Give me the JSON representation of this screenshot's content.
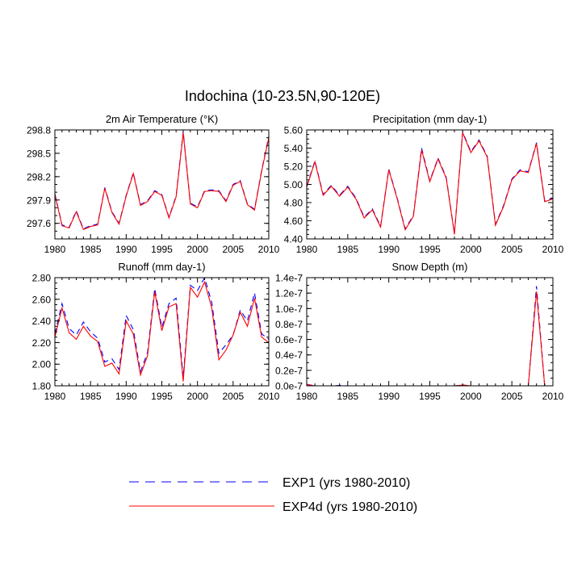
{
  "figure_title": "Indochina (10-23.5N,90-120E)",
  "legend": {
    "entries": [
      {
        "label": "EXP1 (yrs 1980-2010)",
        "color": "#0000ff",
        "dash": "dashed"
      },
      {
        "label": "EXP4d (yrs 1980-2010)",
        "color": "#ff0000",
        "dash": "solid"
      }
    ]
  },
  "colors": {
    "exp1": "#0000ff",
    "exp4d": "#ff0000"
  },
  "chart_data": [
    {
      "type": "line",
      "title": "2m Air Temperature",
      "units": "(°K)",
      "x": [
        1980,
        1981,
        1982,
        1983,
        1984,
        1985,
        1986,
        1987,
        1988,
        1989,
        1990,
        1991,
        1992,
        1993,
        1994,
        1995,
        1996,
        1997,
        1998,
        1999,
        2000,
        2001,
        2002,
        2003,
        2004,
        2005,
        2006,
        2007,
        2008,
        2009,
        2010
      ],
      "xlim": [
        1980,
        2010
      ],
      "xticks": [
        "1980",
        "1985",
        "1990",
        "1995",
        "2000",
        "2005",
        "2010"
      ],
      "ylim": [
        297.4,
        298.8
      ],
      "yticks": [
        "297.6",
        "297.9",
        "298.2",
        "298.5",
        "298.8"
      ],
      "series": [
        {
          "name": "EXP1 (yrs 1980-2010)",
          "values": [
            297.98,
            297.58,
            297.55,
            297.76,
            297.53,
            297.57,
            297.59,
            298.06,
            297.75,
            297.6,
            297.96,
            298.25,
            297.84,
            297.89,
            298.02,
            297.97,
            297.68,
            297.95,
            298.78,
            297.86,
            297.81,
            298.02,
            298.03,
            298.02,
            297.89,
            298.1,
            298.15,
            297.85,
            297.78,
            298.28,
            298.72
          ]
        },
        {
          "name": "EXP4d (yrs 1980-2010)",
          "values": [
            297.97,
            297.57,
            297.54,
            297.75,
            297.52,
            297.56,
            297.58,
            298.05,
            297.74,
            297.59,
            297.95,
            298.24,
            297.83,
            297.88,
            298.01,
            297.96,
            297.67,
            297.94,
            298.76,
            297.85,
            297.8,
            298.01,
            298.02,
            298.01,
            297.88,
            298.09,
            298.14,
            297.84,
            297.77,
            298.27,
            298.7
          ]
        }
      ]
    },
    {
      "type": "line",
      "title": "Precipitation",
      "units": "(mm day-1)",
      "x": [
        1980,
        1981,
        1982,
        1983,
        1984,
        1985,
        1986,
        1987,
        1988,
        1989,
        1990,
        1991,
        1992,
        1993,
        1994,
        1995,
        1996,
        1997,
        1998,
        1999,
        2000,
        2001,
        2002,
        2003,
        2004,
        2005,
        2006,
        2007,
        2008,
        2009,
        2010
      ],
      "xlim": [
        1980,
        2010
      ],
      "xticks": [
        "1980",
        "1985",
        "1990",
        "1995",
        "2000",
        "2005",
        "2010"
      ],
      "ylim": [
        4.4,
        5.6
      ],
      "yticks": [
        "4.40",
        "4.60",
        "4.80",
        "5.00",
        "5.20",
        "5.40",
        "5.60"
      ],
      "series": [
        {
          "name": "EXP1 (yrs 1980-2010)",
          "values": [
            4.98,
            5.26,
            4.89,
            4.99,
            4.88,
            4.98,
            4.85,
            4.64,
            4.73,
            4.54,
            5.17,
            4.86,
            4.51,
            4.66,
            5.4,
            5.04,
            5.29,
            5.08,
            4.46,
            5.58,
            5.36,
            5.49,
            5.31,
            4.56,
            4.77,
            5.06,
            5.16,
            5.14,
            5.46,
            4.82,
            4.85
          ]
        },
        {
          "name": "EXP4d (yrs 1980-2010)",
          "values": [
            4.97,
            5.25,
            4.88,
            4.98,
            4.87,
            4.97,
            4.84,
            4.63,
            4.72,
            4.53,
            5.16,
            4.85,
            4.5,
            4.65,
            5.38,
            5.03,
            5.28,
            5.07,
            4.45,
            5.57,
            5.35,
            5.48,
            5.3,
            4.55,
            4.76,
            5.05,
            5.15,
            5.13,
            5.45,
            4.81,
            4.84
          ]
        }
      ]
    },
    {
      "type": "line",
      "title": "Runoff",
      "units": "(mm day-1)",
      "x": [
        1980,
        1981,
        1982,
        1983,
        1984,
        1985,
        1986,
        1987,
        1988,
        1989,
        1990,
        1991,
        1992,
        1993,
        1994,
        1995,
        1996,
        1997,
        1998,
        1999,
        2000,
        2001,
        2002,
        2003,
        2004,
        2005,
        2006,
        2007,
        2008,
        2009,
        2010
      ],
      "xlim": [
        1980,
        2010
      ],
      "xticks": [
        "1980",
        "1985",
        "1990",
        "1995",
        "2000",
        "2005",
        "2010"
      ],
      "ylim": [
        1.8,
        2.8
      ],
      "yticks": [
        "1.80",
        "2.00",
        "2.20",
        "2.40",
        "2.60",
        "2.80"
      ],
      "series": [
        {
          "name": "EXP1 (yrs 1980-2010)",
          "values": [
            2.28,
            2.56,
            2.33,
            2.27,
            2.39,
            2.3,
            2.24,
            2.02,
            2.05,
            1.95,
            2.45,
            2.32,
            1.93,
            2.11,
            2.7,
            2.34,
            2.56,
            2.61,
            1.88,
            2.73,
            2.68,
            2.8,
            2.57,
            2.1,
            2.18,
            2.27,
            2.5,
            2.4,
            2.66,
            2.28,
            2.23
          ]
        },
        {
          "name": "EXP4d (yrs 1980-2010)",
          "values": [
            2.25,
            2.52,
            2.29,
            2.23,
            2.35,
            2.26,
            2.21,
            1.98,
            2.01,
            1.91,
            2.4,
            2.28,
            1.9,
            2.08,
            2.67,
            2.31,
            2.53,
            2.56,
            1.84,
            2.71,
            2.62,
            2.76,
            2.52,
            2.04,
            2.13,
            2.27,
            2.48,
            2.35,
            2.61,
            2.25,
            2.2
          ]
        }
      ]
    },
    {
      "type": "line",
      "title": "Snow Depth",
      "units": "(m)",
      "x": [
        1980,
        1981,
        1982,
        1983,
        1984,
        1985,
        1986,
        1987,
        1988,
        1989,
        1990,
        1991,
        1992,
        1993,
        1994,
        1995,
        1996,
        1997,
        1998,
        1999,
        2000,
        2001,
        2002,
        2003,
        2004,
        2005,
        2006,
        2007,
        2008,
        2009,
        2010
      ],
      "xlim": [
        1980,
        2010
      ],
      "xticks": [
        "1980",
        "1985",
        "1990",
        "1995",
        "2000",
        "2005",
        "2010"
      ],
      "ylim": [
        0,
        1.4e-07
      ],
      "yticks": [
        "0.0e-7",
        "0.2e-7",
        "0.4e-7",
        "0.6e-7",
        "0.8e-7",
        "1.0e-7",
        "1.2e-7",
        "1.4e-7"
      ],
      "series": [
        {
          "name": "EXP1 (yrs 1980-2010)",
          "values": [
            2e-09,
            0,
            0,
            0,
            5e-10,
            0,
            0,
            0,
            0,
            0,
            0,
            0,
            0,
            0,
            0,
            0,
            0,
            0,
            0,
            1e-09,
            0,
            0,
            0,
            0,
            0,
            0,
            0,
            0,
            1.29e-07,
            0,
            0
          ]
        },
        {
          "name": "EXP4d (yrs 1980-2010)",
          "values": [
            1.5e-09,
            0,
            0,
            0,
            0,
            0,
            0,
            0,
            0,
            0,
            0,
            0,
            0,
            0,
            0,
            0,
            0,
            0,
            0,
            1e-09,
            0,
            0,
            0,
            0,
            0,
            0,
            0,
            0,
            1.22e-07,
            0,
            0
          ]
        }
      ]
    }
  ]
}
